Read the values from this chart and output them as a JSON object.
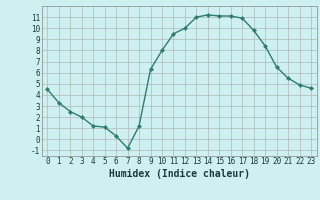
{
  "x": [
    0,
    1,
    2,
    3,
    4,
    5,
    6,
    7,
    8,
    9,
    10,
    11,
    12,
    13,
    14,
    15,
    16,
    17,
    18,
    19,
    20,
    21,
    22,
    23
  ],
  "y": [
    4.5,
    3.3,
    2.5,
    2.0,
    1.2,
    1.1,
    0.3,
    -0.8,
    1.2,
    6.3,
    8.0,
    9.5,
    10.0,
    11.0,
    11.2,
    11.1,
    11.1,
    10.9,
    9.8,
    8.4,
    6.5,
    5.5,
    4.9,
    4.6
  ],
  "line_color": "#2e7d6e",
  "marker": "D",
  "marker_size": 2,
  "bg_color": "#cff0f0",
  "grid_color": "#b0b8b8",
  "xlabel": "Humidex (Indice chaleur)",
  "xlim": [
    -0.5,
    23.5
  ],
  "ylim": [
    -1.5,
    12.0
  ],
  "xticks": [
    0,
    1,
    2,
    3,
    4,
    5,
    6,
    7,
    8,
    9,
    10,
    11,
    12,
    13,
    14,
    15,
    16,
    17,
    18,
    19,
    20,
    21,
    22,
    23
  ],
  "yticks": [
    -1,
    0,
    1,
    2,
    3,
    4,
    5,
    6,
    7,
    8,
    9,
    10,
    11
  ],
  "line_width": 1.0,
  "tick_fontsize": 5.5,
  "xlabel_fontsize": 7.0
}
